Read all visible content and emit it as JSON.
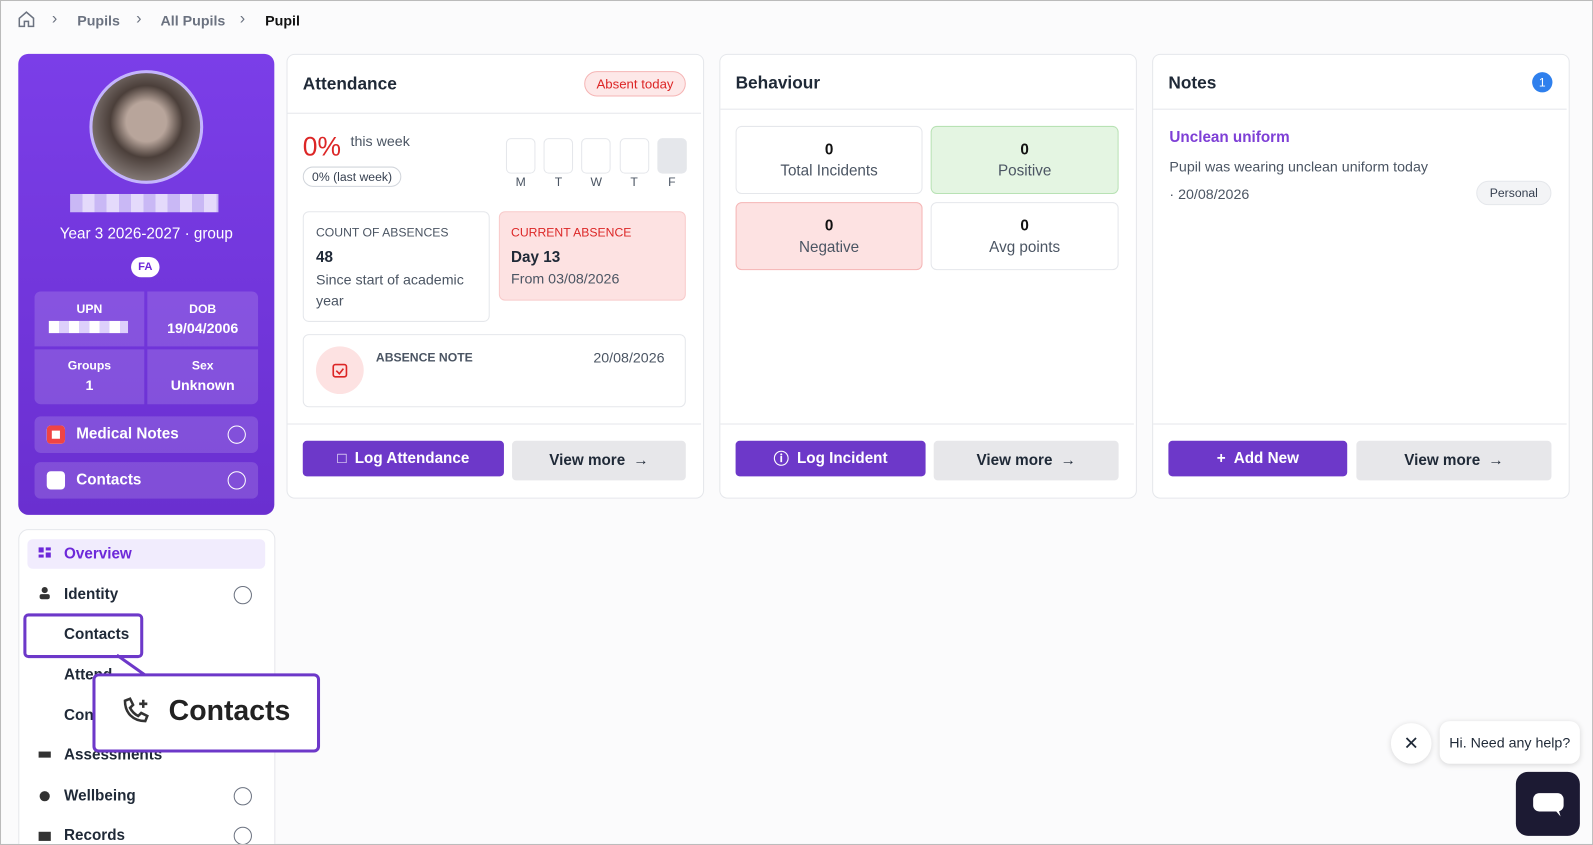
{
  "breadcrumb": [
    "Pupils",
    "All Pupils",
    "Pupil"
  ],
  "profile": {
    "class": "Year 3 2026-2027 · group",
    "badge": "FA",
    "fields": [
      {
        "label": "UPN"
      },
      {
        "label": "DOB",
        "value": "19/04/2006"
      },
      {
        "label": "Groups",
        "value": "1"
      },
      {
        "label": "Sex",
        "value": "Unknown"
      }
    ],
    "accordions": [
      "Medical Notes",
      "Contacts"
    ]
  },
  "nav": [
    "Overview",
    "Identity",
    "Contacts",
    "Attend",
    "Con",
    "Assessments",
    "Wellbeing",
    "Records"
  ],
  "callout": "Contacts",
  "attendance": {
    "title": "Attendance",
    "status": "Absent today",
    "percent": "0%",
    "period": "this week",
    "last": "0% (last week)",
    "days": [
      "M",
      "T",
      "W",
      "T",
      "F"
    ],
    "count": {
      "label": "COUNT OF ABSENCES",
      "value": "48",
      "desc": "Since start of academic year"
    },
    "current": {
      "label": "CURRENT ABSENCE",
      "value": "Day 13",
      "desc": "From 03/08/2026"
    },
    "note": {
      "label": "ABSENCE NOTE",
      "date": "20/08/2026"
    },
    "buttons": [
      "Log Attendance",
      "View more"
    ]
  },
  "behaviour": {
    "title": "Behaviour",
    "stats": [
      {
        "value": "0",
        "label": "Total Incidents"
      },
      {
        "value": "0",
        "label": "Positive"
      },
      {
        "value": "0",
        "label": "Negative"
      },
      {
        "value": "0",
        "label": "Avg points"
      }
    ],
    "buttons": [
      "Log Incident",
      "View more"
    ]
  },
  "notes": {
    "title": "Notes",
    "count": "1",
    "item": {
      "title": "Unclean uniform",
      "body": "Pupil was wearing unclean uniform today",
      "date": "· 20/08/2026",
      "tag": "Personal"
    },
    "buttons": [
      "Add New",
      "View more"
    ]
  },
  "chat": "Hi. Need any help?"
}
